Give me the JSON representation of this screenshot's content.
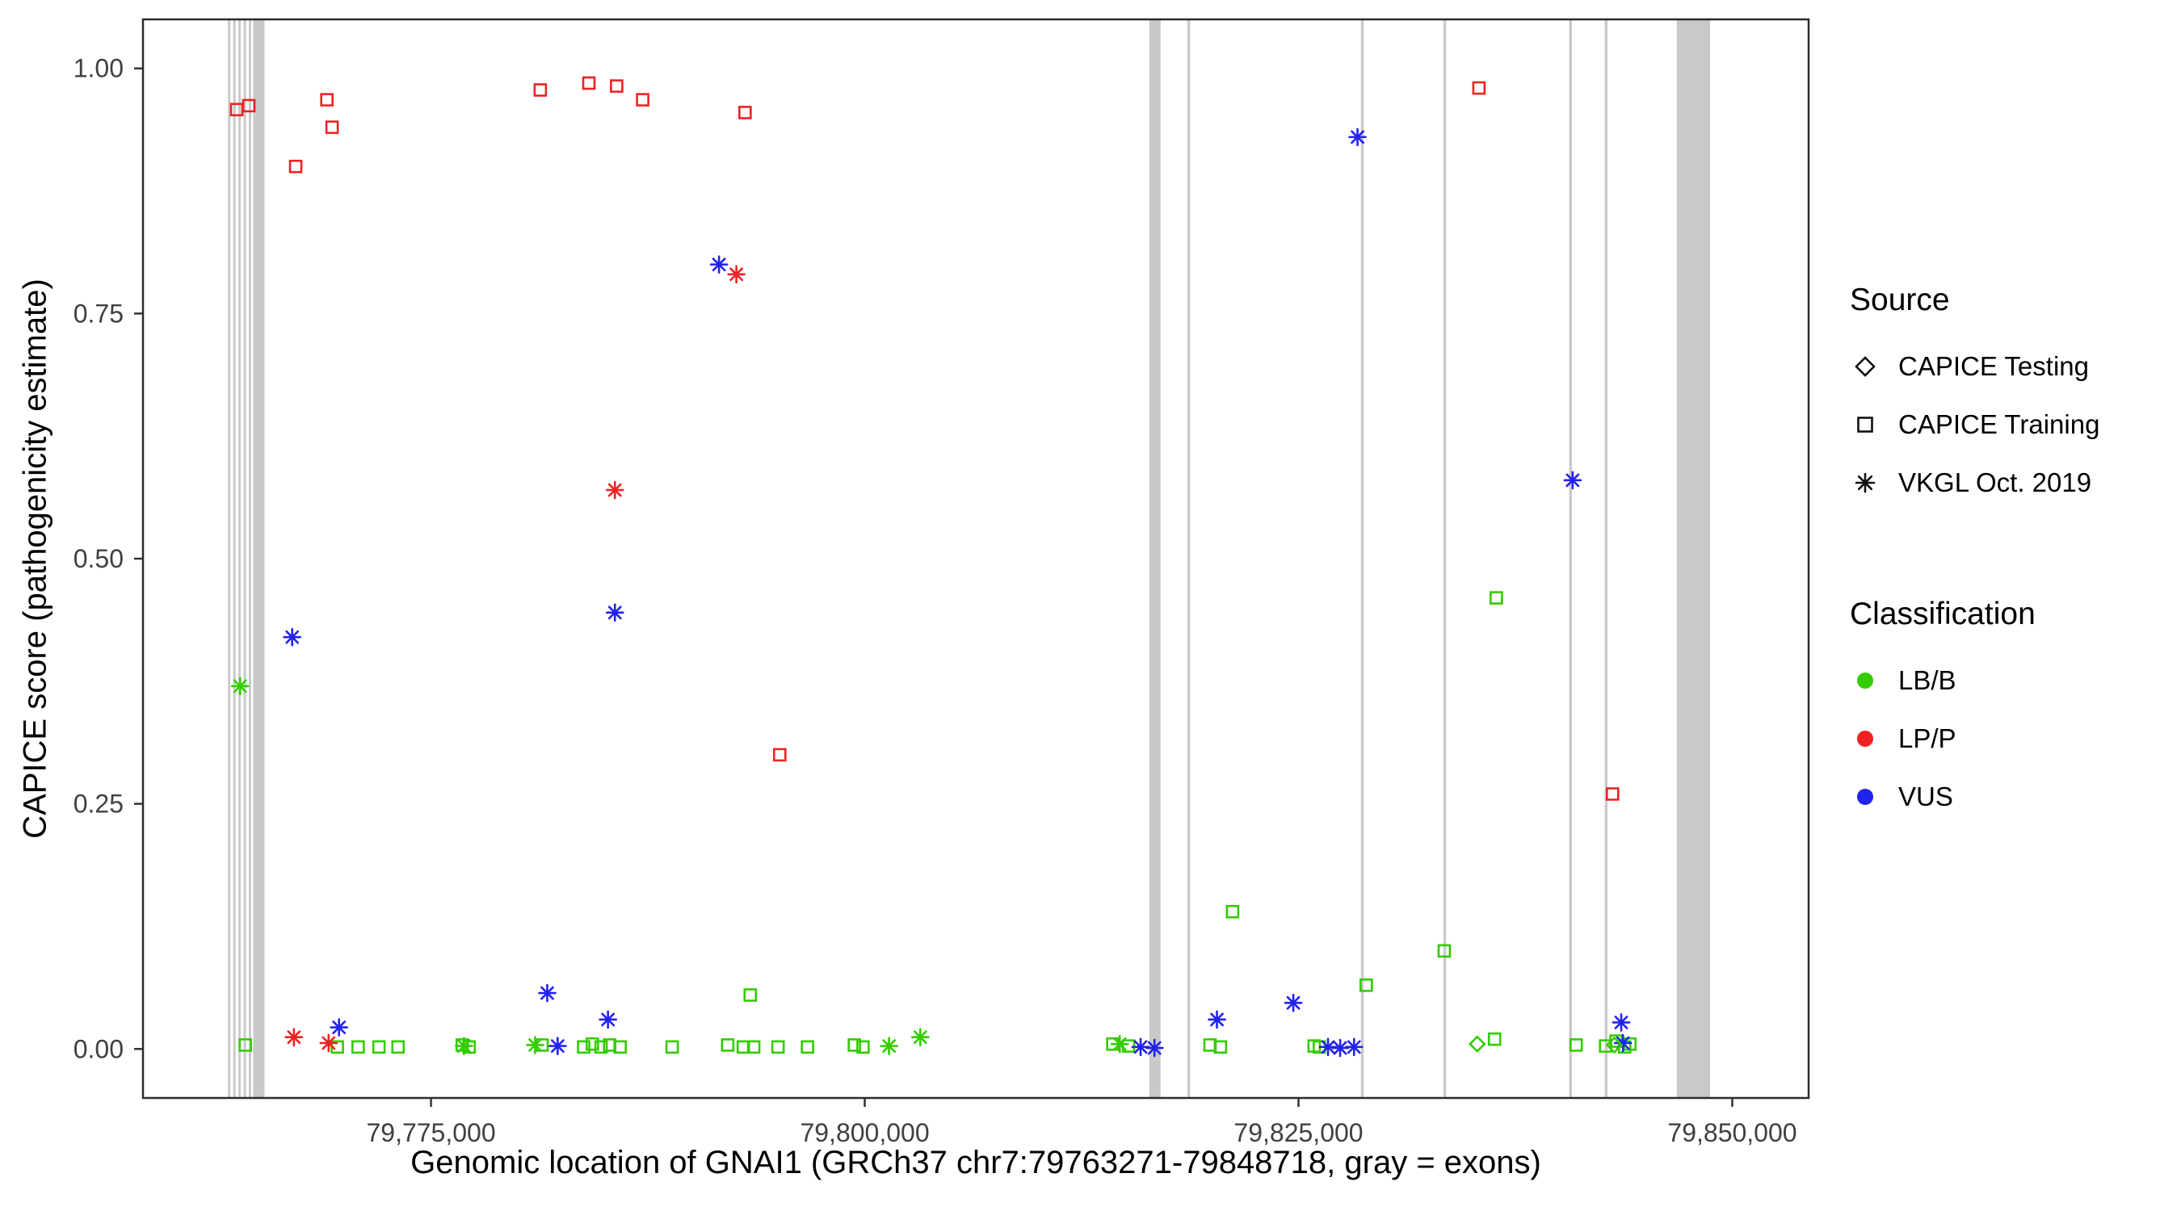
{
  "chart_data": {
    "type": "scatter",
    "title": "",
    "xlabel": "Genomic location of GNAI1 (GRCh37 chr7:79763271-79848718, gray = exons)",
    "ylabel": "CAPICE score (pathogenicity estimate)",
    "xlim": [
      79758400,
      79854400
    ],
    "ylim": [
      -0.05,
      1.05
    ],
    "grid": "off",
    "legend_position": "right",
    "xticks": [
      {
        "value": 79775000,
        "label": "79,775,000"
      },
      {
        "value": 79800000,
        "label": "79,800,000"
      },
      {
        "value": 79825000,
        "label": "79,825,000"
      },
      {
        "value": 79850000,
        "label": "79,850,000"
      }
    ],
    "yticks": [
      {
        "value": 0.0,
        "label": "0.00"
      },
      {
        "value": 0.25,
        "label": "0.25"
      },
      {
        "value": 0.5,
        "label": "0.50"
      },
      {
        "value": 0.75,
        "label": "0.75"
      },
      {
        "value": 1.0,
        "label": "1.00"
      }
    ],
    "exon_color": "#c9c9c9",
    "exons": [
      [
        79763300,
        79763380
      ],
      [
        79763600,
        79763680
      ],
      [
        79763900,
        79763980
      ],
      [
        79764200,
        79764280
      ],
      [
        79764500,
        79764580
      ],
      [
        79764750,
        79765400
      ],
      [
        79816400,
        79817050
      ],
      [
        79818600,
        79818760
      ],
      [
        79828600,
        79828760
      ],
      [
        79833350,
        79833510
      ],
      [
        79840600,
        79840760
      ],
      [
        79842650,
        79842810
      ],
      [
        79846800,
        79848718
      ]
    ],
    "colors": {
      "LB/B": "#33cc00",
      "LP/P": "#ee2222",
      "VUS": "#2222ee"
    },
    "source_shapes": {
      "CAPICE Testing": "diamond",
      "CAPICE Training": "square",
      "VKGL Oct. 2019": "asterisk"
    },
    "legend": {
      "source_title": "Source",
      "source_items": [
        {
          "label": "CAPICE Testing",
          "shape": "diamond"
        },
        {
          "label": "CAPICE Training",
          "shape": "square"
        },
        {
          "label": "VKGL Oct. 2019",
          "shape": "asterisk"
        }
      ],
      "classification_title": "Classification",
      "classification_items": [
        {
          "label": "LB/B",
          "color_key": "LB/B"
        },
        {
          "label": "LP/P",
          "color_key": "LP/P"
        },
        {
          "label": "VUS",
          "color_key": "VUS"
        }
      ]
    },
    "points": [
      {
        "x": 79763800,
        "y": 0.958,
        "source": "CAPICE Training",
        "classification": "LP/P"
      },
      {
        "x": 79764500,
        "y": 0.962,
        "source": "CAPICE Training",
        "classification": "LP/P"
      },
      {
        "x": 79767200,
        "y": 0.9,
        "source": "CAPICE Training",
        "classification": "LP/P"
      },
      {
        "x": 79769000,
        "y": 0.968,
        "source": "CAPICE Training",
        "classification": "LP/P"
      },
      {
        "x": 79769300,
        "y": 0.94,
        "source": "CAPICE Training",
        "classification": "LP/P"
      },
      {
        "x": 79781300,
        "y": 0.978,
        "source": "CAPICE Training",
        "classification": "LP/P"
      },
      {
        "x": 79784100,
        "y": 0.985,
        "source": "CAPICE Training",
        "classification": "LP/P"
      },
      {
        "x": 79785700,
        "y": 0.982,
        "source": "CAPICE Training",
        "classification": "LP/P"
      },
      {
        "x": 79787200,
        "y": 0.968,
        "source": "CAPICE Training",
        "classification": "LP/P"
      },
      {
        "x": 79793100,
        "y": 0.955,
        "source": "CAPICE Training",
        "classification": "LP/P"
      },
      {
        "x": 79795100,
        "y": 0.3,
        "source": "CAPICE Training",
        "classification": "LP/P"
      },
      {
        "x": 79835400,
        "y": 0.98,
        "source": "CAPICE Training",
        "classification": "LP/P"
      },
      {
        "x": 79843100,
        "y": 0.26,
        "source": "CAPICE Training",
        "classification": "LP/P"
      },
      {
        "x": 79764300,
        "y": 0.004,
        "source": "CAPICE Training",
        "classification": "LB/B"
      },
      {
        "x": 79769600,
        "y": 0.002,
        "source": "CAPICE Training",
        "classification": "LB/B"
      },
      {
        "x": 79770800,
        "y": 0.002,
        "source": "CAPICE Training",
        "classification": "LB/B"
      },
      {
        "x": 79772000,
        "y": 0.002,
        "source": "CAPICE Training",
        "classification": "LB/B"
      },
      {
        "x": 79773100,
        "y": 0.002,
        "source": "CAPICE Training",
        "classification": "LB/B"
      },
      {
        "x": 79776800,
        "y": 0.004,
        "source": "CAPICE Training",
        "classification": "LB/B"
      },
      {
        "x": 79777200,
        "y": 0.002,
        "source": "CAPICE Training",
        "classification": "LB/B"
      },
      {
        "x": 79781400,
        "y": 0.004,
        "source": "CAPICE Training",
        "classification": "LB/B"
      },
      {
        "x": 79783800,
        "y": 0.002,
        "source": "CAPICE Training",
        "classification": "LB/B"
      },
      {
        "x": 79784300,
        "y": 0.005,
        "source": "CAPICE Training",
        "classification": "LB/B"
      },
      {
        "x": 79784800,
        "y": 0.002,
        "source": "CAPICE Training",
        "classification": "LB/B"
      },
      {
        "x": 79785300,
        "y": 0.004,
        "source": "CAPICE Training",
        "classification": "LB/B"
      },
      {
        "x": 79785900,
        "y": 0.002,
        "source": "CAPICE Training",
        "classification": "LB/B"
      },
      {
        "x": 79788900,
        "y": 0.002,
        "source": "CAPICE Training",
        "classification": "LB/B"
      },
      {
        "x": 79792100,
        "y": 0.004,
        "source": "CAPICE Training",
        "classification": "LB/B"
      },
      {
        "x": 79793000,
        "y": 0.002,
        "source": "CAPICE Training",
        "classification": "LB/B"
      },
      {
        "x": 79793400,
        "y": 0.055,
        "source": "CAPICE Training",
        "classification": "LB/B"
      },
      {
        "x": 79793600,
        "y": 0.002,
        "source": "CAPICE Training",
        "classification": "LB/B"
      },
      {
        "x": 79795000,
        "y": 0.002,
        "source": "CAPICE Training",
        "classification": "LB/B"
      },
      {
        "x": 79796700,
        "y": 0.002,
        "source": "CAPICE Training",
        "classification": "LB/B"
      },
      {
        "x": 79799400,
        "y": 0.004,
        "source": "CAPICE Training",
        "classification": "LB/B"
      },
      {
        "x": 79799900,
        "y": 0.002,
        "source": "CAPICE Training",
        "classification": "LB/B"
      },
      {
        "x": 79814300,
        "y": 0.005,
        "source": "CAPICE Training",
        "classification": "LB/B"
      },
      {
        "x": 79815200,
        "y": 0.003,
        "source": "CAPICE Training",
        "classification": "LB/B"
      },
      {
        "x": 79819900,
        "y": 0.004,
        "source": "CAPICE Training",
        "classification": "LB/B"
      },
      {
        "x": 79820500,
        "y": 0.002,
        "source": "CAPICE Training",
        "classification": "LB/B"
      },
      {
        "x": 79821200,
        "y": 0.14,
        "source": "CAPICE Training",
        "classification": "LB/B"
      },
      {
        "x": 79825900,
        "y": 0.003,
        "source": "CAPICE Training",
        "classification": "LB/B"
      },
      {
        "x": 79826200,
        "y": 0.002,
        "source": "CAPICE Training",
        "classification": "LB/B"
      },
      {
        "x": 79828900,
        "y": 0.065,
        "source": "CAPICE Training",
        "classification": "LB/B"
      },
      {
        "x": 79833400,
        "y": 0.1,
        "source": "CAPICE Training",
        "classification": "LB/B"
      },
      {
        "x": 79836300,
        "y": 0.01,
        "source": "CAPICE Training",
        "classification": "LB/B"
      },
      {
        "x": 79836400,
        "y": 0.46,
        "source": "CAPICE Training",
        "classification": "LB/B"
      },
      {
        "x": 79841000,
        "y": 0.004,
        "source": "CAPICE Training",
        "classification": "LB/B"
      },
      {
        "x": 79842700,
        "y": 0.003,
        "source": "CAPICE Training",
        "classification": "LB/B"
      },
      {
        "x": 79843300,
        "y": 0.008,
        "source": "CAPICE Training",
        "classification": "LB/B"
      },
      {
        "x": 79843800,
        "y": 0.002,
        "source": "CAPICE Training",
        "classification": "LB/B"
      },
      {
        "x": 79844100,
        "y": 0.005,
        "source": "CAPICE Training",
        "classification": "LB/B"
      },
      {
        "x": 79764000,
        "y": 0.37,
        "source": "VKGL Oct. 2019",
        "classification": "LB/B"
      },
      {
        "x": 79776900,
        "y": 0.003,
        "source": "VKGL Oct. 2019",
        "classification": "LB/B"
      },
      {
        "x": 79781000,
        "y": 0.004,
        "source": "VKGL Oct. 2019",
        "classification": "LB/B"
      },
      {
        "x": 79801400,
        "y": 0.003,
        "source": "VKGL Oct. 2019",
        "classification": "LB/B"
      },
      {
        "x": 79803200,
        "y": 0.012,
        "source": "VKGL Oct. 2019",
        "classification": "LB/B"
      },
      {
        "x": 79814700,
        "y": 0.005,
        "source": "VKGL Oct. 2019",
        "classification": "LB/B"
      },
      {
        "x": 79767100,
        "y": 0.012,
        "source": "VKGL Oct. 2019",
        "classification": "LP/P"
      },
      {
        "x": 79769100,
        "y": 0.006,
        "source": "VKGL Oct. 2019",
        "classification": "LP/P"
      },
      {
        "x": 79785600,
        "y": 0.57,
        "source": "VKGL Oct. 2019",
        "classification": "LP/P"
      },
      {
        "x": 79792600,
        "y": 0.79,
        "source": "VKGL Oct. 2019",
        "classification": "LP/P"
      },
      {
        "x": 79767000,
        "y": 0.42,
        "source": "VKGL Oct. 2019",
        "classification": "VUS"
      },
      {
        "x": 79769700,
        "y": 0.022,
        "source": "VKGL Oct. 2019",
        "classification": "VUS"
      },
      {
        "x": 79781700,
        "y": 0.057,
        "source": "VKGL Oct. 2019",
        "classification": "VUS"
      },
      {
        "x": 79782300,
        "y": 0.003,
        "source": "VKGL Oct. 2019",
        "classification": "VUS"
      },
      {
        "x": 79785200,
        "y": 0.03,
        "source": "VKGL Oct. 2019",
        "classification": "VUS"
      },
      {
        "x": 79785600,
        "y": 0.445,
        "source": "VKGL Oct. 2019",
        "classification": "VUS"
      },
      {
        "x": 79791600,
        "y": 0.8,
        "source": "VKGL Oct. 2019",
        "classification": "VUS"
      },
      {
        "x": 79815900,
        "y": 0.002,
        "source": "VKGL Oct. 2019",
        "classification": "VUS"
      },
      {
        "x": 79816700,
        "y": 0.001,
        "source": "VKGL Oct. 2019",
        "classification": "VUS"
      },
      {
        "x": 79820300,
        "y": 0.03,
        "source": "VKGL Oct. 2019",
        "classification": "VUS"
      },
      {
        "x": 79824700,
        "y": 0.047,
        "source": "VKGL Oct. 2019",
        "classification": "VUS"
      },
      {
        "x": 79826700,
        "y": 0.002,
        "source": "VKGL Oct. 2019",
        "classification": "VUS"
      },
      {
        "x": 79827400,
        "y": 0.001,
        "source": "VKGL Oct. 2019",
        "classification": "VUS"
      },
      {
        "x": 79828200,
        "y": 0.002,
        "source": "VKGL Oct. 2019",
        "classification": "VUS"
      },
      {
        "x": 79828400,
        "y": 0.93,
        "source": "VKGL Oct. 2019",
        "classification": "VUS"
      },
      {
        "x": 79840800,
        "y": 0.58,
        "source": "VKGL Oct. 2019",
        "classification": "VUS"
      },
      {
        "x": 79843600,
        "y": 0.027,
        "source": "VKGL Oct. 2019",
        "classification": "VUS"
      },
      {
        "x": 79843700,
        "y": 0.006,
        "source": "VKGL Oct. 2019",
        "classification": "VUS"
      },
      {
        "x": 79835300,
        "y": 0.005,
        "source": "CAPICE Testing",
        "classification": "LB/B"
      },
      {
        "x": 79843200,
        "y": 0.004,
        "source": "CAPICE Testing",
        "classification": "LB/B"
      }
    ]
  }
}
